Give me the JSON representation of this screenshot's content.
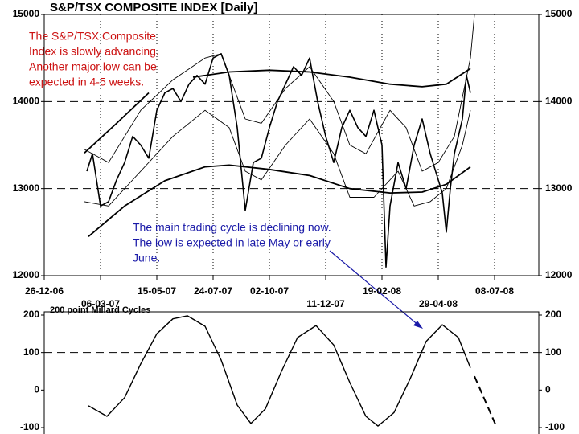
{
  "chart_data": [
    {
      "type": "line",
      "title": "S&P/TSX COMPOSITE INDEX  [Daily]",
      "xlim": [
        0,
        615
      ],
      "xticks": [
        {
          "value": 0,
          "label": "26-12-06"
        },
        {
          "value": 70,
          "label": "06-03-07"
        },
        {
          "value": 140,
          "label": "15-05-07"
        },
        {
          "value": 210,
          "label": "24-07-07"
        },
        {
          "value": 280,
          "label": "02-10-07"
        },
        {
          "value": 350,
          "label": "11-12-07"
        },
        {
          "value": 420,
          "label": "19-02-08"
        },
        {
          "value": 490,
          "label": "29-04-08"
        },
        {
          "value": 560,
          "label": "08-07-08"
        }
      ],
      "ylim": [
        12000,
        15000
      ],
      "yticks": [
        12000,
        13000,
        14000,
        15000
      ],
      "dashed_grid": [
        13000,
        14000
      ],
      "annotations": [
        {
          "lines": [
            "The S&P/TSX Composite",
            "Index is slowly advancing.",
            "Another major low can be",
            "expected in 4-5 weeks."
          ],
          "color": "#cc1111"
        },
        {
          "lines": [
            "The main trading cycle is declining now.",
            "The low is expected in late May or early",
            "June."
          ],
          "color": "#1a1aa8"
        }
      ],
      "series": [
        {
          "color": "#000000",
          "width": 1.6,
          "x": [
            53,
            60,
            70,
            80,
            90,
            100,
            110,
            120,
            130,
            140,
            150,
            160,
            170,
            180,
            190,
            200,
            210,
            220,
            230,
            240,
            250,
            260,
            270,
            280,
            290,
            300,
            310,
            320,
            330,
            340,
            350,
            360,
            370,
            380,
            390,
            400,
            410,
            420,
            425,
            430,
            440,
            450,
            460,
            470,
            480,
            490,
            495,
            500,
            505,
            510,
            520,
            525,
            530
          ],
          "values": [
            13200,
            13400,
            12800,
            12850,
            13100,
            13300,
            13600,
            13500,
            13350,
            13900,
            14100,
            14150,
            14000,
            14200,
            14300,
            14200,
            14500,
            14550,
            14300,
            13700,
            12750,
            13300,
            13350,
            13700,
            14000,
            14200,
            14400,
            14300,
            14500,
            14000,
            13600,
            13300,
            13700,
            13900,
            13700,
            13600,
            13900,
            13500,
            12100,
            12800,
            13300,
            13000,
            13500,
            13800,
            13400,
            13100,
            12950,
            12500,
            13000,
            13400,
            13800,
            14300,
            14100
          ]
        },
        {
          "color": "#000000",
          "width": 1.8,
          "x": [
            50,
            90,
            130,
            135,
            185,
            230,
            280,
            330,
            380,
            430,
            470,
            500,
            530
          ],
          "values": [
            13410,
            13750,
            14100,
            null,
            14280,
            14340,
            14360,
            14340,
            14280,
            14200,
            14170,
            14200,
            14380
          ]
        },
        {
          "color": "#000000",
          "width": 0.9,
          "x": [
            50,
            80,
            120,
            160,
            200,
            220,
            250,
            270,
            300,
            330,
            360,
            380,
            400,
            430,
            450,
            470,
            490,
            510,
            530,
            535
          ],
          "values": [
            13450,
            13300,
            13900,
            14250,
            14500,
            14550,
            13800,
            13750,
            14150,
            14400,
            14000,
            13500,
            13400,
            13900,
            13700,
            13200,
            13300,
            13600,
            14500,
            15000
          ]
        },
        {
          "color": "#000000",
          "width": 0.9,
          "x": [
            50,
            80,
            120,
            160,
            200,
            230,
            250,
            270,
            300,
            330,
            360,
            380,
            410,
            440,
            460,
            480,
            500,
            520,
            530
          ],
          "values": [
            12850,
            12800,
            13200,
            13600,
            13900,
            13700,
            13200,
            13100,
            13500,
            13800,
            13400,
            12900,
            12900,
            13200,
            12800,
            12850,
            13000,
            13500,
            13900
          ]
        },
        {
          "color": "#000000",
          "width": 1.8,
          "x": [
            55,
            100,
            150,
            200,
            230,
            280,
            330,
            380,
            430,
            470,
            500,
            530
          ],
          "values": [
            12450,
            12800,
            13090,
            13250,
            13270,
            13220,
            13150,
            13000,
            12950,
            12960,
            13050,
            13250
          ]
        }
      ]
    },
    {
      "type": "line",
      "title": "200 point Millard Cycles",
      "ylim": [
        -100,
        200
      ],
      "yticks": [
        -100,
        0,
        100,
        200
      ],
      "dashed_grid": [
        100
      ],
      "series": [
        {
          "color": "#000000",
          "width": 1.4,
          "dashed": false,
          "x": [
            55,
            78,
            100,
            120,
            140,
            160,
            178,
            200,
            220,
            240,
            257,
            275,
            295,
            315,
            338,
            360,
            380,
            400,
            415,
            435,
            455,
            475,
            495,
            515,
            530
          ],
          "values": [
            -42,
            -70,
            -20,
            70,
            150,
            190,
            198,
            170,
            80,
            -40,
            -89,
            -50,
            50,
            140,
            172,
            120,
            20,
            -70,
            -96,
            -60,
            30,
            130,
            174,
            140,
            59
          ]
        },
        {
          "color": "#000000",
          "width": 2,
          "dashed": true,
          "x": [
            535,
            562
          ],
          "values": [
            37,
            -96
          ]
        }
      ]
    }
  ]
}
